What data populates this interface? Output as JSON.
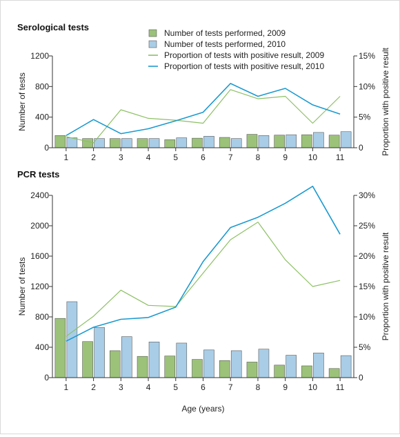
{
  "figure": {
    "xlabel": "Age (years)",
    "colors": {
      "bar2009": "#9cc27a",
      "bar2010": "#a9cde6",
      "line2009": "#8cc063",
      "line2010": "#1a9ad0",
      "axis": "#333333"
    }
  },
  "chart_data": [
    {
      "type": "bar",
      "title": "Serological tests",
      "xlabel": "",
      "ylabel": "Number of tests",
      "y2label": "Proportion with positive result",
      "categories": [
        "1",
        "2",
        "3",
        "4",
        "5",
        "6",
        "7",
        "8",
        "9",
        "10",
        "11"
      ],
      "ylim": [
        0,
        1200
      ],
      "yticks": [
        "0",
        "400",
        "800",
        "1200"
      ],
      "y2lim": [
        0,
        15
      ],
      "y2ticks": [
        "0",
        "5%",
        "10%",
        "15%"
      ],
      "legend_position": "top-right",
      "grid": false,
      "series": [
        {
          "name": "Number of tests performed, 2009",
          "kind": "bar",
          "axis": "left",
          "values": [
            160,
            120,
            120,
            120,
            105,
            125,
            135,
            175,
            165,
            170,
            165
          ]
        },
        {
          "name": "Number of tests performed, 2010",
          "kind": "bar",
          "axis": "left",
          "values": [
            130,
            120,
            120,
            120,
            130,
            150,
            120,
            160,
            170,
            200,
            210
          ]
        },
        {
          "name": "Proportion of tests with positive result, 2009",
          "kind": "line",
          "axis": "right",
          "values": [
            1.8,
            0.8,
            6.2,
            4.8,
            4.5,
            4.0,
            9.5,
            8.0,
            8.4,
            4.0,
            8.4
          ]
        },
        {
          "name": "Proportion of tests with positive result, 2010",
          "kind": "line",
          "axis": "right",
          "values": [
            2.0,
            4.6,
            2.3,
            3.1,
            4.4,
            5.8,
            10.5,
            8.4,
            9.7,
            7.0,
            5.5
          ]
        }
      ]
    },
    {
      "type": "bar",
      "title": "PCR tests",
      "xlabel": "Age (years)",
      "ylabel": "Number of tests",
      "y2label": "Proportion with positive result",
      "categories": [
        "1",
        "2",
        "3",
        "4",
        "5",
        "6",
        "7",
        "8",
        "9",
        "10",
        "11"
      ],
      "ylim": [
        0,
        2400
      ],
      "yticks": [
        "0",
        "400",
        "800",
        "1200",
        "1600",
        "2000",
        "2400"
      ],
      "y2lim": [
        0,
        30
      ],
      "y2ticks": [
        "0",
        "5%",
        "10%",
        "15%",
        "20%",
        "25%",
        "30%"
      ],
      "grid": false,
      "series": [
        {
          "name": "Number of tests performed, 2009",
          "kind": "bar",
          "axis": "left",
          "values": [
            780,
            475,
            355,
            280,
            285,
            240,
            225,
            205,
            165,
            155,
            120
          ]
        },
        {
          "name": "Number of tests performed, 2010",
          "kind": "bar",
          "axis": "left",
          "values": [
            1000,
            660,
            540,
            470,
            455,
            365,
            355,
            375,
            295,
            325,
            290
          ]
        },
        {
          "name": "Proportion of tests with positive result, 2009",
          "kind": "line",
          "axis": "right",
          "values": [
            6.8,
            10.1,
            14.4,
            11.9,
            11.7,
            17.2,
            22.7,
            25.6,
            19.4,
            15.0,
            16.0
          ]
        },
        {
          "name": "Proportion of tests with positive result, 2010",
          "kind": "line",
          "axis": "right",
          "values": [
            6.0,
            8.3,
            9.6,
            9.9,
            11.6,
            19.1,
            24.7,
            26.4,
            28.7,
            31.5,
            23.6
          ]
        }
      ]
    }
  ]
}
